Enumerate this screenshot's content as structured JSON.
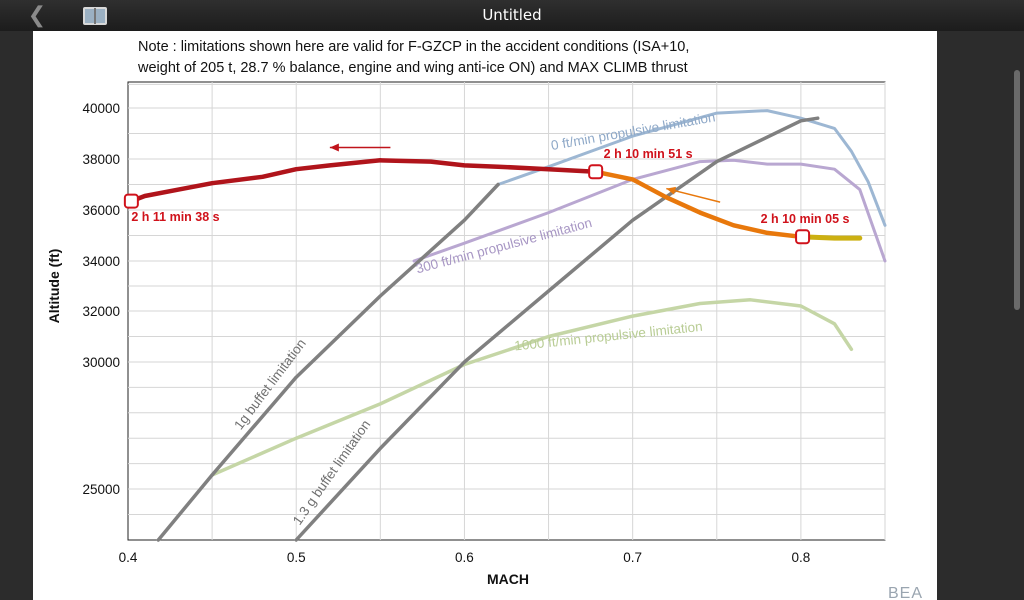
{
  "window": {
    "title": "Untitled"
  },
  "colors": {
    "chrome": "#1f1f1f",
    "propulsive_0": "#9db7d3",
    "propulsive_300": "#b9a7d1",
    "propulsive_1000": "#c5d6a6",
    "buffet": "#808080",
    "flight_red": "#b0141b",
    "flight_orange": "#e8780c",
    "flight_yellow": "#ccb012",
    "marker": "#d0121b"
  },
  "chart_data": {
    "type": "line",
    "note_lines": [
      "Note : limitations shown here are valid for F-GZCP in the accident conditions (ISA+10,",
      "weight of 205 t, 28.7 % balance, engine and wing anti-ice ON) and MAX CLIMB thrust"
    ],
    "xlabel": "MACH",
    "ylabel": "Altitude (ft)",
    "xlim": [
      0.4,
      0.85
    ],
    "ylim": [
      23000,
      41100
    ],
    "x_ticks": [
      0.4,
      0.5,
      0.6,
      0.7,
      0.8
    ],
    "x_tick_labels": [
      "0.4",
      "0.5",
      "0.6",
      "0.7",
      "0.8"
    ],
    "y_ticks": [
      25000,
      30000,
      32000,
      34000,
      36000,
      38000,
      40000
    ],
    "y_tick_labels": [
      "25000",
      "30000",
      "32000",
      "34000",
      "36000",
      "38000",
      "40000"
    ],
    "grid": true,
    "series": [
      {
        "name": "0 ft/min propulsive limitation",
        "color": "#9db7d3",
        "width": 3,
        "x": [
          0.62,
          0.65,
          0.7,
          0.75,
          0.78,
          0.8,
          0.82,
          0.83,
          0.84,
          0.85
        ],
        "y": [
          37000,
          37700,
          38900,
          39800,
          39900,
          39600,
          39200,
          38300,
          37100,
          35400
        ]
      },
      {
        "name": "300 ft/min propulsive limitation",
        "color": "#b9a7d1",
        "width": 3,
        "x": [
          0.57,
          0.6,
          0.65,
          0.7,
          0.74,
          0.76,
          0.78,
          0.8,
          0.82,
          0.835,
          0.85
        ],
        "y": [
          34000,
          34700,
          35900,
          37200,
          37900,
          37950,
          37800,
          37800,
          37600,
          36800,
          34000
        ]
      },
      {
        "name": "1000 ft/min propulsive limitation",
        "color": "#c5d6a6",
        "width": 3.5,
        "x": [
          0.45,
          0.5,
          0.55,
          0.6,
          0.65,
          0.7,
          0.74,
          0.77,
          0.8,
          0.82,
          0.83
        ],
        "y": [
          25550,
          27000,
          28350,
          29900,
          31000,
          31800,
          32300,
          32450,
          32200,
          31500,
          30500
        ]
      },
      {
        "name": "1g buffet limitation",
        "color": "#808080",
        "width": 3.5,
        "x": [
          0.418,
          0.45,
          0.5,
          0.55,
          0.6,
          0.62
        ],
        "y": [
          23000,
          25550,
          29400,
          32600,
          35600,
          37000
        ]
      },
      {
        "name": "1.3 g buffet limitation",
        "color": "#808080",
        "width": 3.5,
        "x": [
          0.5,
          0.55,
          0.6,
          0.65,
          0.7,
          0.75,
          0.8,
          0.81
        ],
        "y": [
          23000,
          26600,
          30000,
          32800,
          35600,
          37900,
          39500,
          39600
        ]
      },
      {
        "name": "flight path (red)",
        "color": "#b0141b",
        "width": 4.5,
        "x": [
          0.402,
          0.41,
          0.43,
          0.45,
          0.48,
          0.5,
          0.52,
          0.55,
          0.58,
          0.6,
          0.62,
          0.65,
          0.678
        ],
        "y": [
          36350,
          36550,
          36800,
          37050,
          37300,
          37600,
          37750,
          37950,
          37900,
          37750,
          37700,
          37600,
          37500
        ]
      },
      {
        "name": "flight path (orange)",
        "color": "#e8780c",
        "width": 4.5,
        "x": [
          0.678,
          0.7,
          0.72,
          0.74,
          0.76,
          0.78,
          0.8
        ],
        "y": [
          37500,
          37200,
          36500,
          35900,
          35400,
          35100,
          34950
        ]
      },
      {
        "name": "flight path (yellow)",
        "color": "#ccb012",
        "width": 5,
        "x": [
          0.8,
          0.82,
          0.835
        ],
        "y": [
          34950,
          34900,
          34900
        ]
      }
    ],
    "curve_labels": [
      {
        "text": "0 ft/min propulsive limitation",
        "color": "#8fa9c8"
      },
      {
        "text": "300 ft/min propulsive limitation",
        "color": "#a796c4"
      },
      {
        "text": "1000 ft/min propulsive limitation",
        "color": "#b8cc94"
      },
      {
        "text": "1g buffet limitation",
        "color": "#707070"
      },
      {
        "text": "1.3 g buffet limitation",
        "color": "#707070"
      }
    ],
    "annotations": [
      {
        "text": "2 h 11 min 38 s",
        "x": 0.402,
        "y": 36350
      },
      {
        "text": "2 h 10 min 51 s",
        "x": 0.678,
        "y": 37500
      },
      {
        "text": "2 h 10 min 05 s",
        "x": 0.801,
        "y": 34950
      }
    ],
    "watermark": "BEA"
  }
}
